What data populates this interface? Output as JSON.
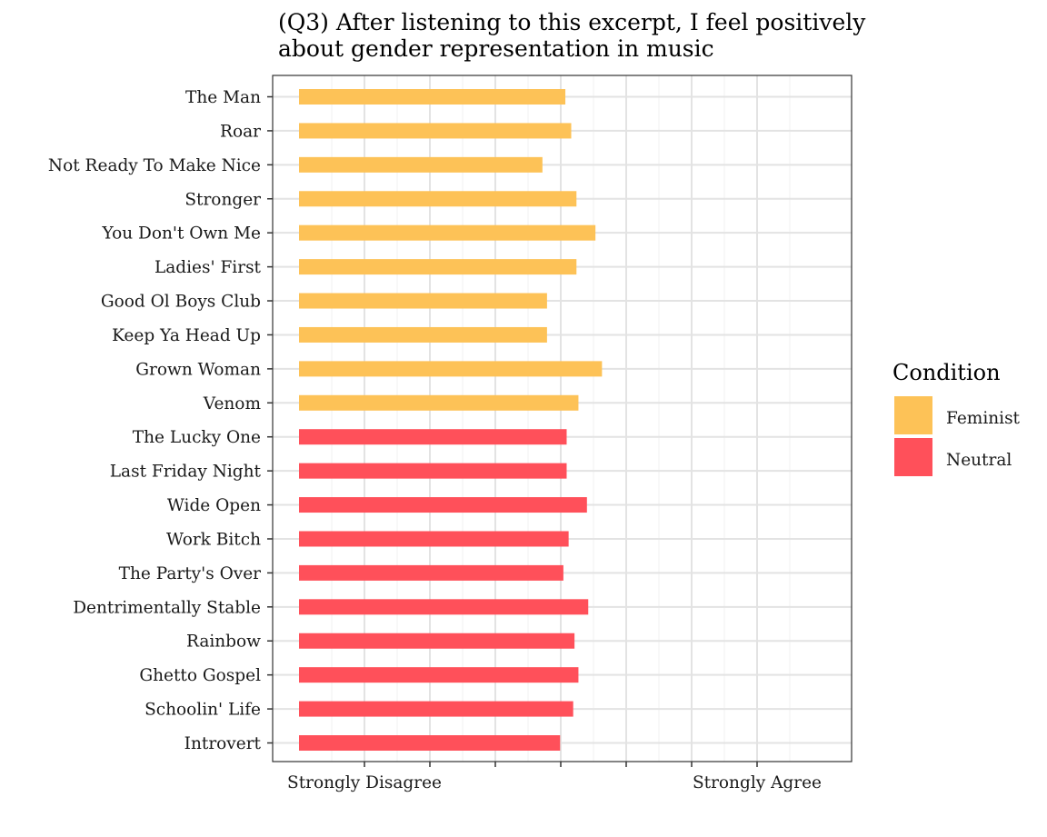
{
  "chart_data": {
    "type": "bar",
    "orientation": "horizontal",
    "title": "(Q3) After listening to this excerpt, I feel positively about gender representation in music",
    "title_lines": [
      "(Q3) After listening to this excerpt, I feel positively",
      "about gender representation in music"
    ],
    "xlabel": "",
    "ylabel": "",
    "xlim": [
      0,
      8.4
    ],
    "x_ticks": [
      1,
      2,
      3,
      4,
      5,
      6,
      7
    ],
    "x_tick_labels": {
      "1": "Strongly Disagree",
      "7": "Strongly Agree"
    },
    "grid": true,
    "legend": {
      "title": "Condition",
      "position": "right",
      "entries": [
        {
          "label": "Feminist",
          "color": "#FDC257"
        },
        {
          "label": "Neutral",
          "color": "#FF505A"
        }
      ]
    },
    "categories": [
      "The Man",
      "Roar",
      "Not Ready To Make Nice",
      "Stronger",
      "You Don't Own Me",
      "Ladies' First",
      "Good Ol Boys Club",
      "Keep Ya Head Up",
      "Grown Woman",
      "Venom",
      "The Lucky One",
      "Last Friday Night",
      "Wide Open",
      "Work Bitch",
      "The Party's Over",
      "Dentrimentally Stable",
      "Rainbow",
      "Ghetto Gospel",
      "Schoolin' Life",
      "Introvert"
    ],
    "values": [
      4.07,
      4.16,
      3.72,
      4.24,
      4.53,
      4.24,
      3.79,
      3.79,
      4.63,
      4.27,
      4.09,
      4.09,
      4.4,
      4.12,
      4.04,
      4.42,
      4.21,
      4.27,
      4.19,
      3.99
    ],
    "condition": [
      "Feminist",
      "Feminist",
      "Feminist",
      "Feminist",
      "Feminist",
      "Feminist",
      "Feminist",
      "Feminist",
      "Feminist",
      "Feminist",
      "Neutral",
      "Neutral",
      "Neutral",
      "Neutral",
      "Neutral",
      "Neutral",
      "Neutral",
      "Neutral",
      "Neutral",
      "Neutral"
    ]
  }
}
